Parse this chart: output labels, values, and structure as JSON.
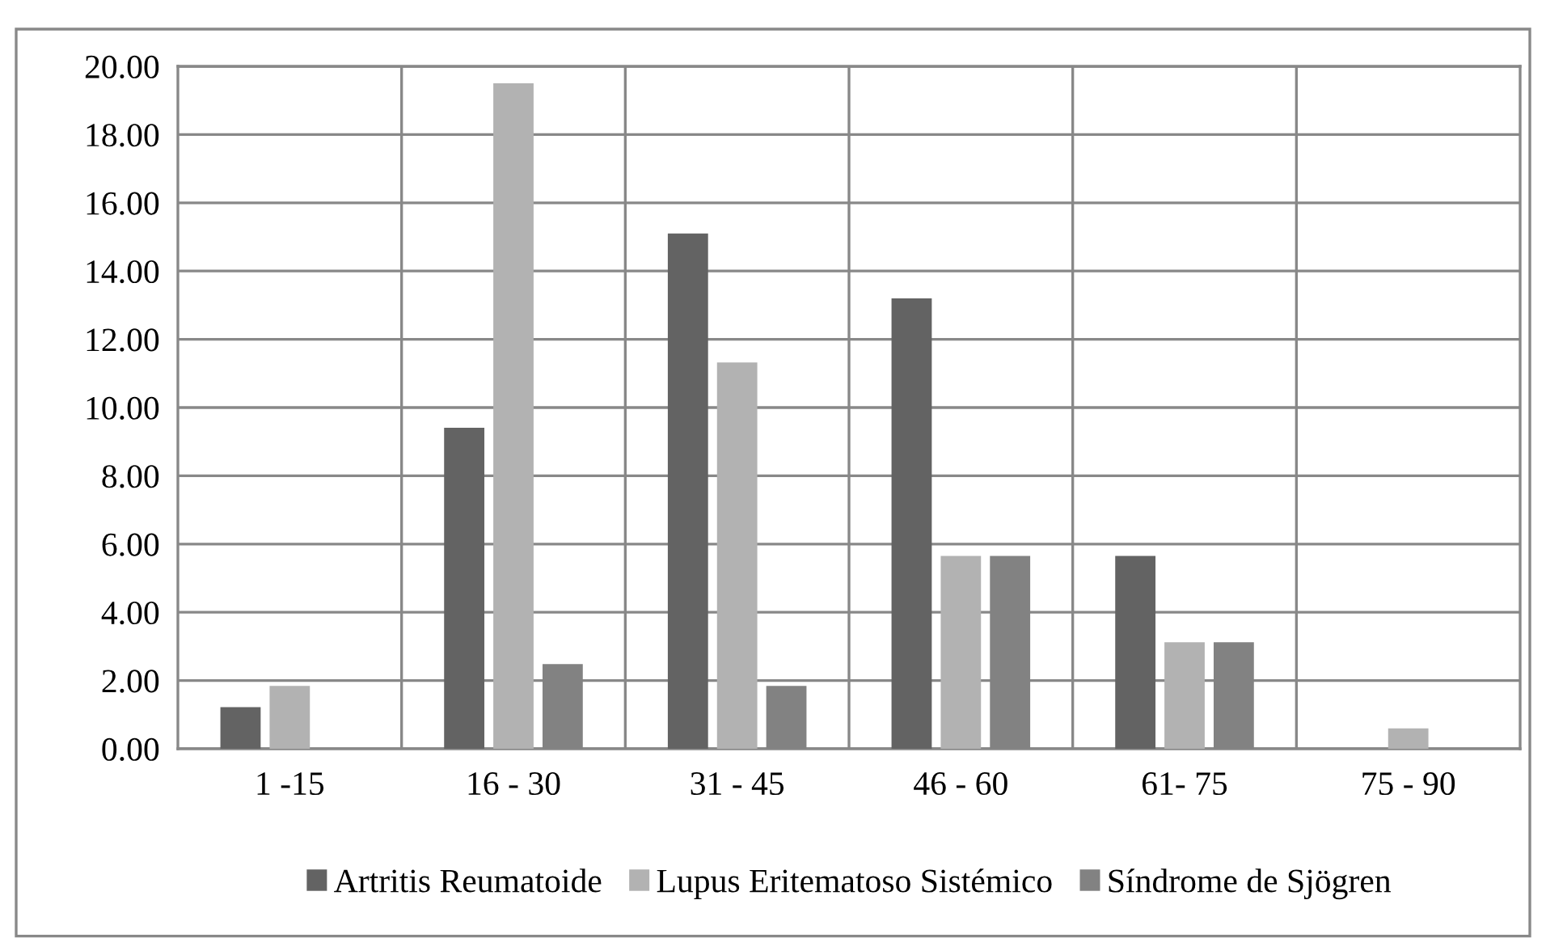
{
  "chart_data": {
    "type": "bar",
    "categories": [
      "1 -15",
      "16 - 30",
      "31 - 45",
      "46 - 60",
      "61- 75",
      "75 - 90"
    ],
    "series": [
      {
        "name": "Artritis Reumatoide",
        "color": "#636363",
        "values": [
          1.22,
          9.41,
          15.1,
          13.2,
          5.65,
          0
        ]
      },
      {
        "name": "Lupus Eritematoso Sistémico",
        "color": "#b2b2b2",
        "values": [
          1.84,
          19.5,
          11.32,
          5.65,
          3.12,
          0.6
        ]
      },
      {
        "name": "Síndrome de Sjögren",
        "color": "#828282",
        "values": [
          0,
          2.48,
          1.84,
          5.65,
          3.12,
          0
        ]
      }
    ],
    "ylim": [
      0,
      20
    ],
    "yticks": [
      {
        "value": 0,
        "label": "0.00"
      },
      {
        "value": 2,
        "label": "2.00"
      },
      {
        "value": 4,
        "label": "4.00"
      },
      {
        "value": 6,
        "label": "6.00"
      },
      {
        "value": 8,
        "label": "8.00"
      },
      {
        "value": 10,
        "label": "10.00"
      },
      {
        "value": 12,
        "label": "12.00"
      },
      {
        "value": 14,
        "label": "14.00"
      },
      {
        "value": 16,
        "label": "16.00"
      },
      {
        "value": 18,
        "label": "18.00"
      },
      {
        "value": 20,
        "label": "20.00"
      }
    ],
    "grid": true,
    "legend": "bottom"
  }
}
